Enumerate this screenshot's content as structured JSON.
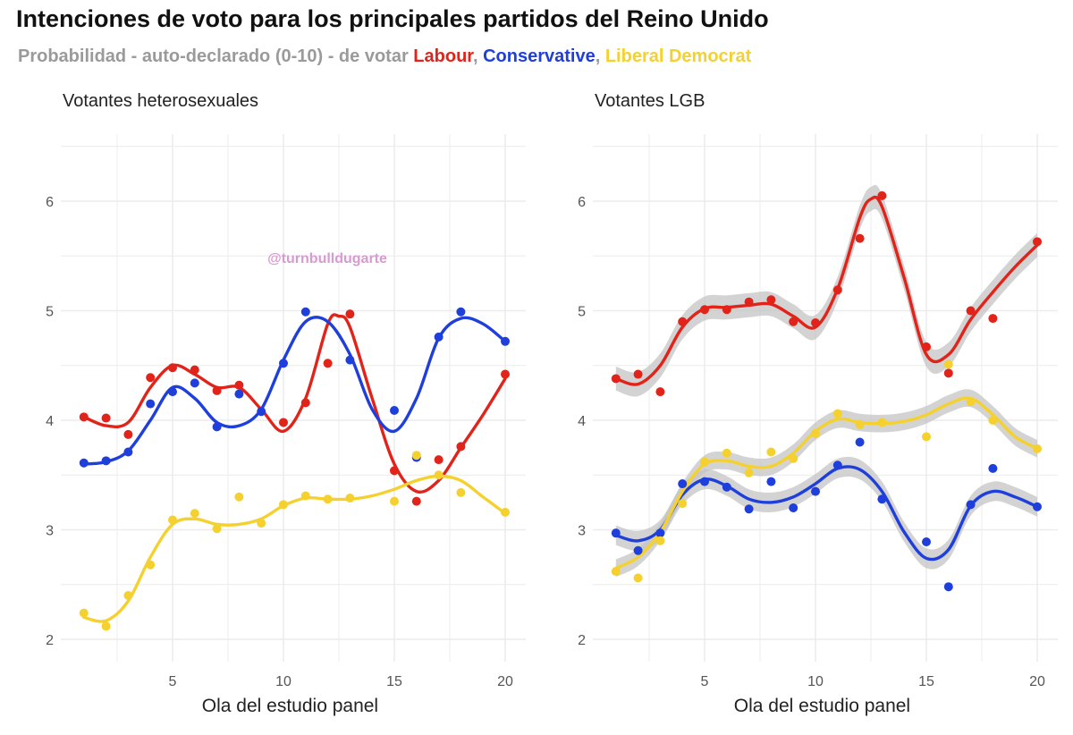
{
  "title": "Intenciones de voto para los principales partidos del Reino Unido",
  "subtitle": {
    "prefix": "Probabilidad - auto-declarado (0-10) - de votar ",
    "labour": "Labour",
    "sep1": ",  ",
    "conservative": "Conservative",
    "sep2": ",  ",
    "libdem": "Liberal Democrat"
  },
  "watermark": "@turnbulldugarte",
  "colors": {
    "Labour": "#e2231a",
    "Conservative": "#1f3fdc",
    "Liberal Democrat": "#f5d130",
    "band": "#c4c4c4",
    "grid": "#ececec"
  },
  "chart_data": [
    {
      "type": "scatter",
      "title": "Votantes heterosexuales",
      "xlabel": "Ola del estudio panel",
      "ylabel": "",
      "xlim": [
        0.5,
        21
      ],
      "ylim": [
        1.9,
        6.6
      ],
      "xticks": [
        5,
        10,
        15,
        20
      ],
      "yticks": [
        2,
        3,
        4,
        5,
        6
      ],
      "grid": true,
      "series": [
        {
          "name": "Labour",
          "points": [
            [
              1,
              4.03
            ],
            [
              2,
              4.02
            ],
            [
              3,
              3.87
            ],
            [
              4,
              4.39
            ],
            [
              5,
              4.48
            ],
            [
              6,
              4.46
            ],
            [
              7,
              4.27
            ],
            [
              8,
              4.32
            ],
            [
              10,
              3.98
            ],
            [
              11,
              4.16
            ],
            [
              12,
              4.52
            ],
            [
              13,
              4.97
            ],
            [
              15,
              3.54
            ],
            [
              16,
              3.26
            ],
            [
              17,
              3.64
            ],
            [
              18,
              3.76
            ],
            [
              20,
              4.42
            ]
          ],
          "smooth": [
            [
              1,
              4.03
            ],
            [
              2,
              3.95
            ],
            [
              3,
              3.98
            ],
            [
              4,
              4.3
            ],
            [
              5,
              4.5
            ],
            [
              6,
              4.42
            ],
            [
              7,
              4.3
            ],
            [
              8,
              4.3
            ],
            [
              9,
              4.1
            ],
            [
              10,
              3.9
            ],
            [
              11,
              4.2
            ],
            [
              12,
              4.88
            ],
            [
              12.5,
              4.95
            ],
            [
              13,
              4.85
            ],
            [
              14,
              4.2
            ],
            [
              15,
              3.6
            ],
            [
              16,
              3.35
            ],
            [
              17,
              3.45
            ],
            [
              18,
              3.75
            ],
            [
              19,
              4.05
            ],
            [
              20,
              4.38
            ]
          ],
          "band": null
        },
        {
          "name": "Conservative",
          "points": [
            [
              1,
              3.61
            ],
            [
              2,
              3.63
            ],
            [
              3,
              3.71
            ],
            [
              4,
              4.15
            ],
            [
              5,
              4.26
            ],
            [
              6,
              4.34
            ],
            [
              7,
              3.94
            ],
            [
              8,
              4.24
            ],
            [
              9,
              4.08
            ],
            [
              10,
              4.52
            ],
            [
              11,
              4.99
            ],
            [
              13,
              4.55
            ],
            [
              15,
              4.09
            ],
            [
              16,
              3.66
            ],
            [
              17,
              4.76
            ],
            [
              18,
              4.99
            ],
            [
              20,
              4.72
            ]
          ],
          "smooth": [
            [
              1,
              3.6
            ],
            [
              2,
              3.62
            ],
            [
              3,
              3.72
            ],
            [
              4,
              4.0
            ],
            [
              5,
              4.3
            ],
            [
              6,
              4.2
            ],
            [
              7,
              3.98
            ],
            [
              8,
              3.95
            ],
            [
              9,
              4.1
            ],
            [
              10,
              4.55
            ],
            [
              11,
              4.9
            ],
            [
              12,
              4.9
            ],
            [
              13,
              4.6
            ],
            [
              14,
              4.1
            ],
            [
              15,
              3.9
            ],
            [
              16,
              4.2
            ],
            [
              17,
              4.75
            ],
            [
              18,
              4.93
            ],
            [
              19,
              4.88
            ],
            [
              20,
              4.72
            ]
          ],
          "band": null
        },
        {
          "name": "Liberal Democrat",
          "points": [
            [
              1,
              2.24
            ],
            [
              2,
              2.12
            ],
            [
              3,
              2.4
            ],
            [
              4,
              2.68
            ],
            [
              5,
              3.09
            ],
            [
              6,
              3.15
            ],
            [
              7,
              3.01
            ],
            [
              8,
              3.3
            ],
            [
              9,
              3.06
            ],
            [
              10,
              3.23
            ],
            [
              11,
              3.31
            ],
            [
              12,
              3.28
            ],
            [
              13,
              3.29
            ],
            [
              15,
              3.26
            ],
            [
              16,
              3.68
            ],
            [
              17,
              3.5
            ],
            [
              18,
              3.34
            ],
            [
              20,
              3.16
            ]
          ],
          "smooth": [
            [
              1,
              2.2
            ],
            [
              2,
              2.17
            ],
            [
              3,
              2.35
            ],
            [
              4,
              2.75
            ],
            [
              5,
              3.05
            ],
            [
              6,
              3.1
            ],
            [
              7,
              3.05
            ],
            [
              8,
              3.05
            ],
            [
              9,
              3.1
            ],
            [
              10,
              3.22
            ],
            [
              11,
              3.29
            ],
            [
              12,
              3.28
            ],
            [
              13,
              3.28
            ],
            [
              14,
              3.31
            ],
            [
              15,
              3.37
            ],
            [
              16,
              3.45
            ],
            [
              17,
              3.49
            ],
            [
              18,
              3.45
            ],
            [
              19,
              3.3
            ],
            [
              20,
              3.15
            ]
          ],
          "band": null
        }
      ]
    },
    {
      "type": "scatter",
      "title": "Votantes LGB",
      "xlabel": "Ola del estudio panel",
      "ylabel": "",
      "xlim": [
        0.5,
        21
      ],
      "ylim": [
        1.9,
        6.6
      ],
      "xticks": [
        5,
        10,
        15,
        20
      ],
      "yticks": [
        2,
        3,
        4,
        5,
        6
      ],
      "grid": true,
      "series": [
        {
          "name": "Labour",
          "points": [
            [
              1,
              4.38
            ],
            [
              2,
              4.42
            ],
            [
              3,
              4.26
            ],
            [
              4,
              4.9
            ],
            [
              5,
              5.01
            ],
            [
              6,
              5.01
            ],
            [
              7,
              5.08
            ],
            [
              8,
              5.1
            ],
            [
              9,
              4.9
            ],
            [
              10,
              4.89
            ],
            [
              11,
              5.19
            ],
            [
              12,
              5.66
            ],
            [
              13,
              6.05
            ],
            [
              15,
              4.67
            ],
            [
              16,
              4.43
            ],
            [
              17,
              5.0
            ],
            [
              18,
              4.93
            ],
            [
              20,
              5.63
            ]
          ],
          "smooth": [
            [
              1,
              4.38
            ],
            [
              2,
              4.33
            ],
            [
              3,
              4.5
            ],
            [
              4,
              4.85
            ],
            [
              5,
              5.02
            ],
            [
              6,
              5.03
            ],
            [
              7,
              5.05
            ],
            [
              8,
              5.06
            ],
            [
              9,
              4.95
            ],
            [
              10,
              4.85
            ],
            [
              11,
              5.2
            ],
            [
              12,
              5.85
            ],
            [
              12.5,
              6.02
            ],
            [
              13,
              5.95
            ],
            [
              14,
              5.3
            ],
            [
              15,
              4.6
            ],
            [
              16,
              4.6
            ],
            [
              17,
              4.92
            ],
            [
              18,
              5.17
            ],
            [
              19,
              5.4
            ],
            [
              20,
              5.6
            ]
          ],
          "band": 0.11
        },
        {
          "name": "Conservative",
          "points": [
            [
              1,
              2.97
            ],
            [
              2,
              2.81
            ],
            [
              3,
              2.97
            ],
            [
              4,
              3.42
            ],
            [
              5,
              3.44
            ],
            [
              6,
              3.39
            ],
            [
              7,
              3.19
            ],
            [
              8,
              3.44
            ],
            [
              9,
              3.2
            ],
            [
              10,
              3.35
            ],
            [
              11,
              3.59
            ],
            [
              12,
              3.8
            ],
            [
              13,
              3.28
            ],
            [
              15,
              2.89
            ],
            [
              16,
              2.48
            ],
            [
              17,
              3.23
            ],
            [
              18,
              3.56
            ],
            [
              20,
              3.21
            ]
          ],
          "smooth": [
            [
              1,
              2.95
            ],
            [
              2,
              2.9
            ],
            [
              3,
              3.0
            ],
            [
              4,
              3.32
            ],
            [
              5,
              3.46
            ],
            [
              6,
              3.4
            ],
            [
              7,
              3.28
            ],
            [
              8,
              3.25
            ],
            [
              9,
              3.3
            ],
            [
              10,
              3.42
            ],
            [
              11,
              3.56
            ],
            [
              12,
              3.55
            ],
            [
              13,
              3.35
            ],
            [
              14,
              2.98
            ],
            [
              15,
              2.74
            ],
            [
              16,
              2.82
            ],
            [
              17,
              3.22
            ],
            [
              18,
              3.35
            ],
            [
              19,
              3.3
            ],
            [
              20,
              3.21
            ]
          ],
          "band": 0.09
        },
        {
          "name": "Liberal Democrat",
          "points": [
            [
              1,
              2.62
            ],
            [
              2,
              2.56
            ],
            [
              3,
              2.9
            ],
            [
              4,
              3.24
            ],
            [
              5,
              3.62
            ],
            [
              6,
              3.7
            ],
            [
              7,
              3.52
            ],
            [
              8,
              3.71
            ],
            [
              9,
              3.65
            ],
            [
              10,
              3.88
            ],
            [
              11,
              4.06
            ],
            [
              12,
              3.96
            ],
            [
              13,
              3.98
            ],
            [
              15,
              3.85
            ],
            [
              16,
              4.51
            ],
            [
              17,
              4.17
            ],
            [
              18,
              4.0
            ],
            [
              20,
              3.74
            ]
          ],
          "smooth": [
            [
              1,
              2.65
            ],
            [
              2,
              2.75
            ],
            [
              3,
              2.98
            ],
            [
              4,
              3.35
            ],
            [
              5,
              3.6
            ],
            [
              6,
              3.63
            ],
            [
              7,
              3.58
            ],
            [
              8,
              3.58
            ],
            [
              9,
              3.7
            ],
            [
              10,
              3.9
            ],
            [
              11,
              4.01
            ],
            [
              12,
              3.98
            ],
            [
              13,
              3.97
            ],
            [
              14,
              3.99
            ],
            [
              15,
              4.05
            ],
            [
              16,
              4.15
            ],
            [
              17,
              4.2
            ],
            [
              18,
              4.05
            ],
            [
              19,
              3.85
            ],
            [
              20,
              3.74
            ]
          ],
          "band": 0.08
        }
      ]
    }
  ]
}
